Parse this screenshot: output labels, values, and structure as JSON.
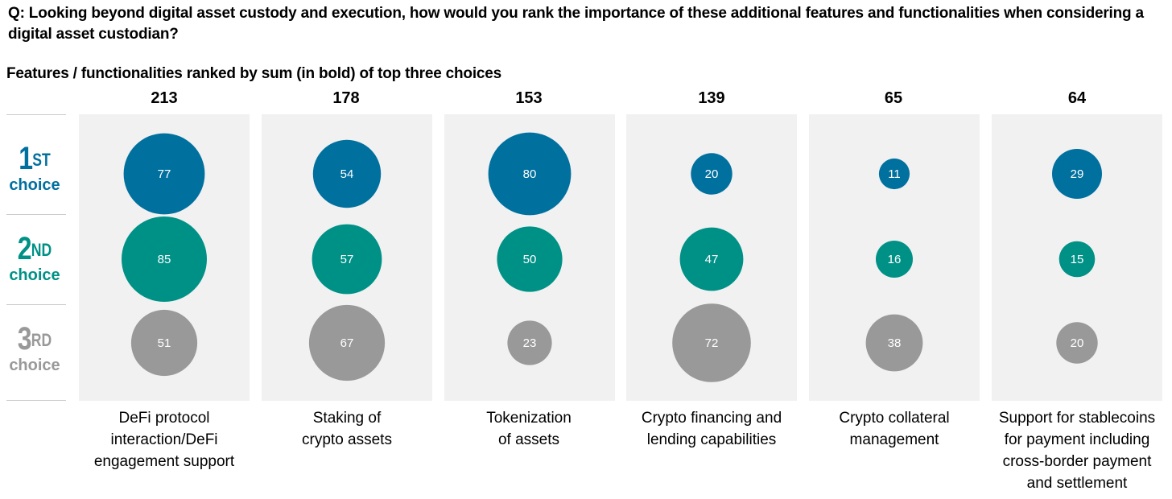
{
  "question": "Q: Looking beyond digital asset custody and execution, how would you rank the importance of these additional features and functionalities when considering a digital asset custodian?",
  "chart_data": {
    "type": "bubble",
    "title": "Features / functionalities ranked by sum (in bold) of top three choices",
    "categories": [
      "DeFi protocol interaction/DeFi engagement support",
      "Staking of crypto assets",
      "Tokenization of assets",
      "Crypto financing and lending capabilities",
      "Crypto collateral management",
      "Support for stablecoins for payment including cross-border payment and settlement"
    ],
    "totals": [
      213,
      178,
      153,
      139,
      65,
      64
    ],
    "series": [
      {
        "name": "1ST choice",
        "color": "#00709f",
        "values": [
          77,
          54,
          80,
          20,
          11,
          29
        ]
      },
      {
        "name": "2ND choice",
        "color": "#009186",
        "values": [
          85,
          57,
          50,
          47,
          16,
          15
        ]
      },
      {
        "name": "3RD choice",
        "color": "#999999",
        "values": [
          51,
          67,
          23,
          72,
          38,
          20
        ]
      }
    ]
  },
  "rows": [
    {
      "num": "1",
      "sup": "ST",
      "word": "choice",
      "color": "#00709f"
    },
    {
      "num": "2",
      "sup": "ND",
      "word": "choice",
      "color": "#009186"
    },
    {
      "num": "3",
      "sup": "RD",
      "word": "choice",
      "color": "#999999"
    }
  ],
  "category_lines": [
    [
      "DeFi protocol",
      "interaction/DeFi",
      "engagement support"
    ],
    [
      "Staking of",
      "crypto assets"
    ],
    [
      "Tokenization",
      "of assets"
    ],
    [
      "Crypto financing and",
      "lending capabilities"
    ],
    [
      "Crypto collateral",
      "management"
    ],
    [
      "Support for stablecoins",
      "for payment including",
      "cross-border payment",
      "and settlement"
    ]
  ]
}
